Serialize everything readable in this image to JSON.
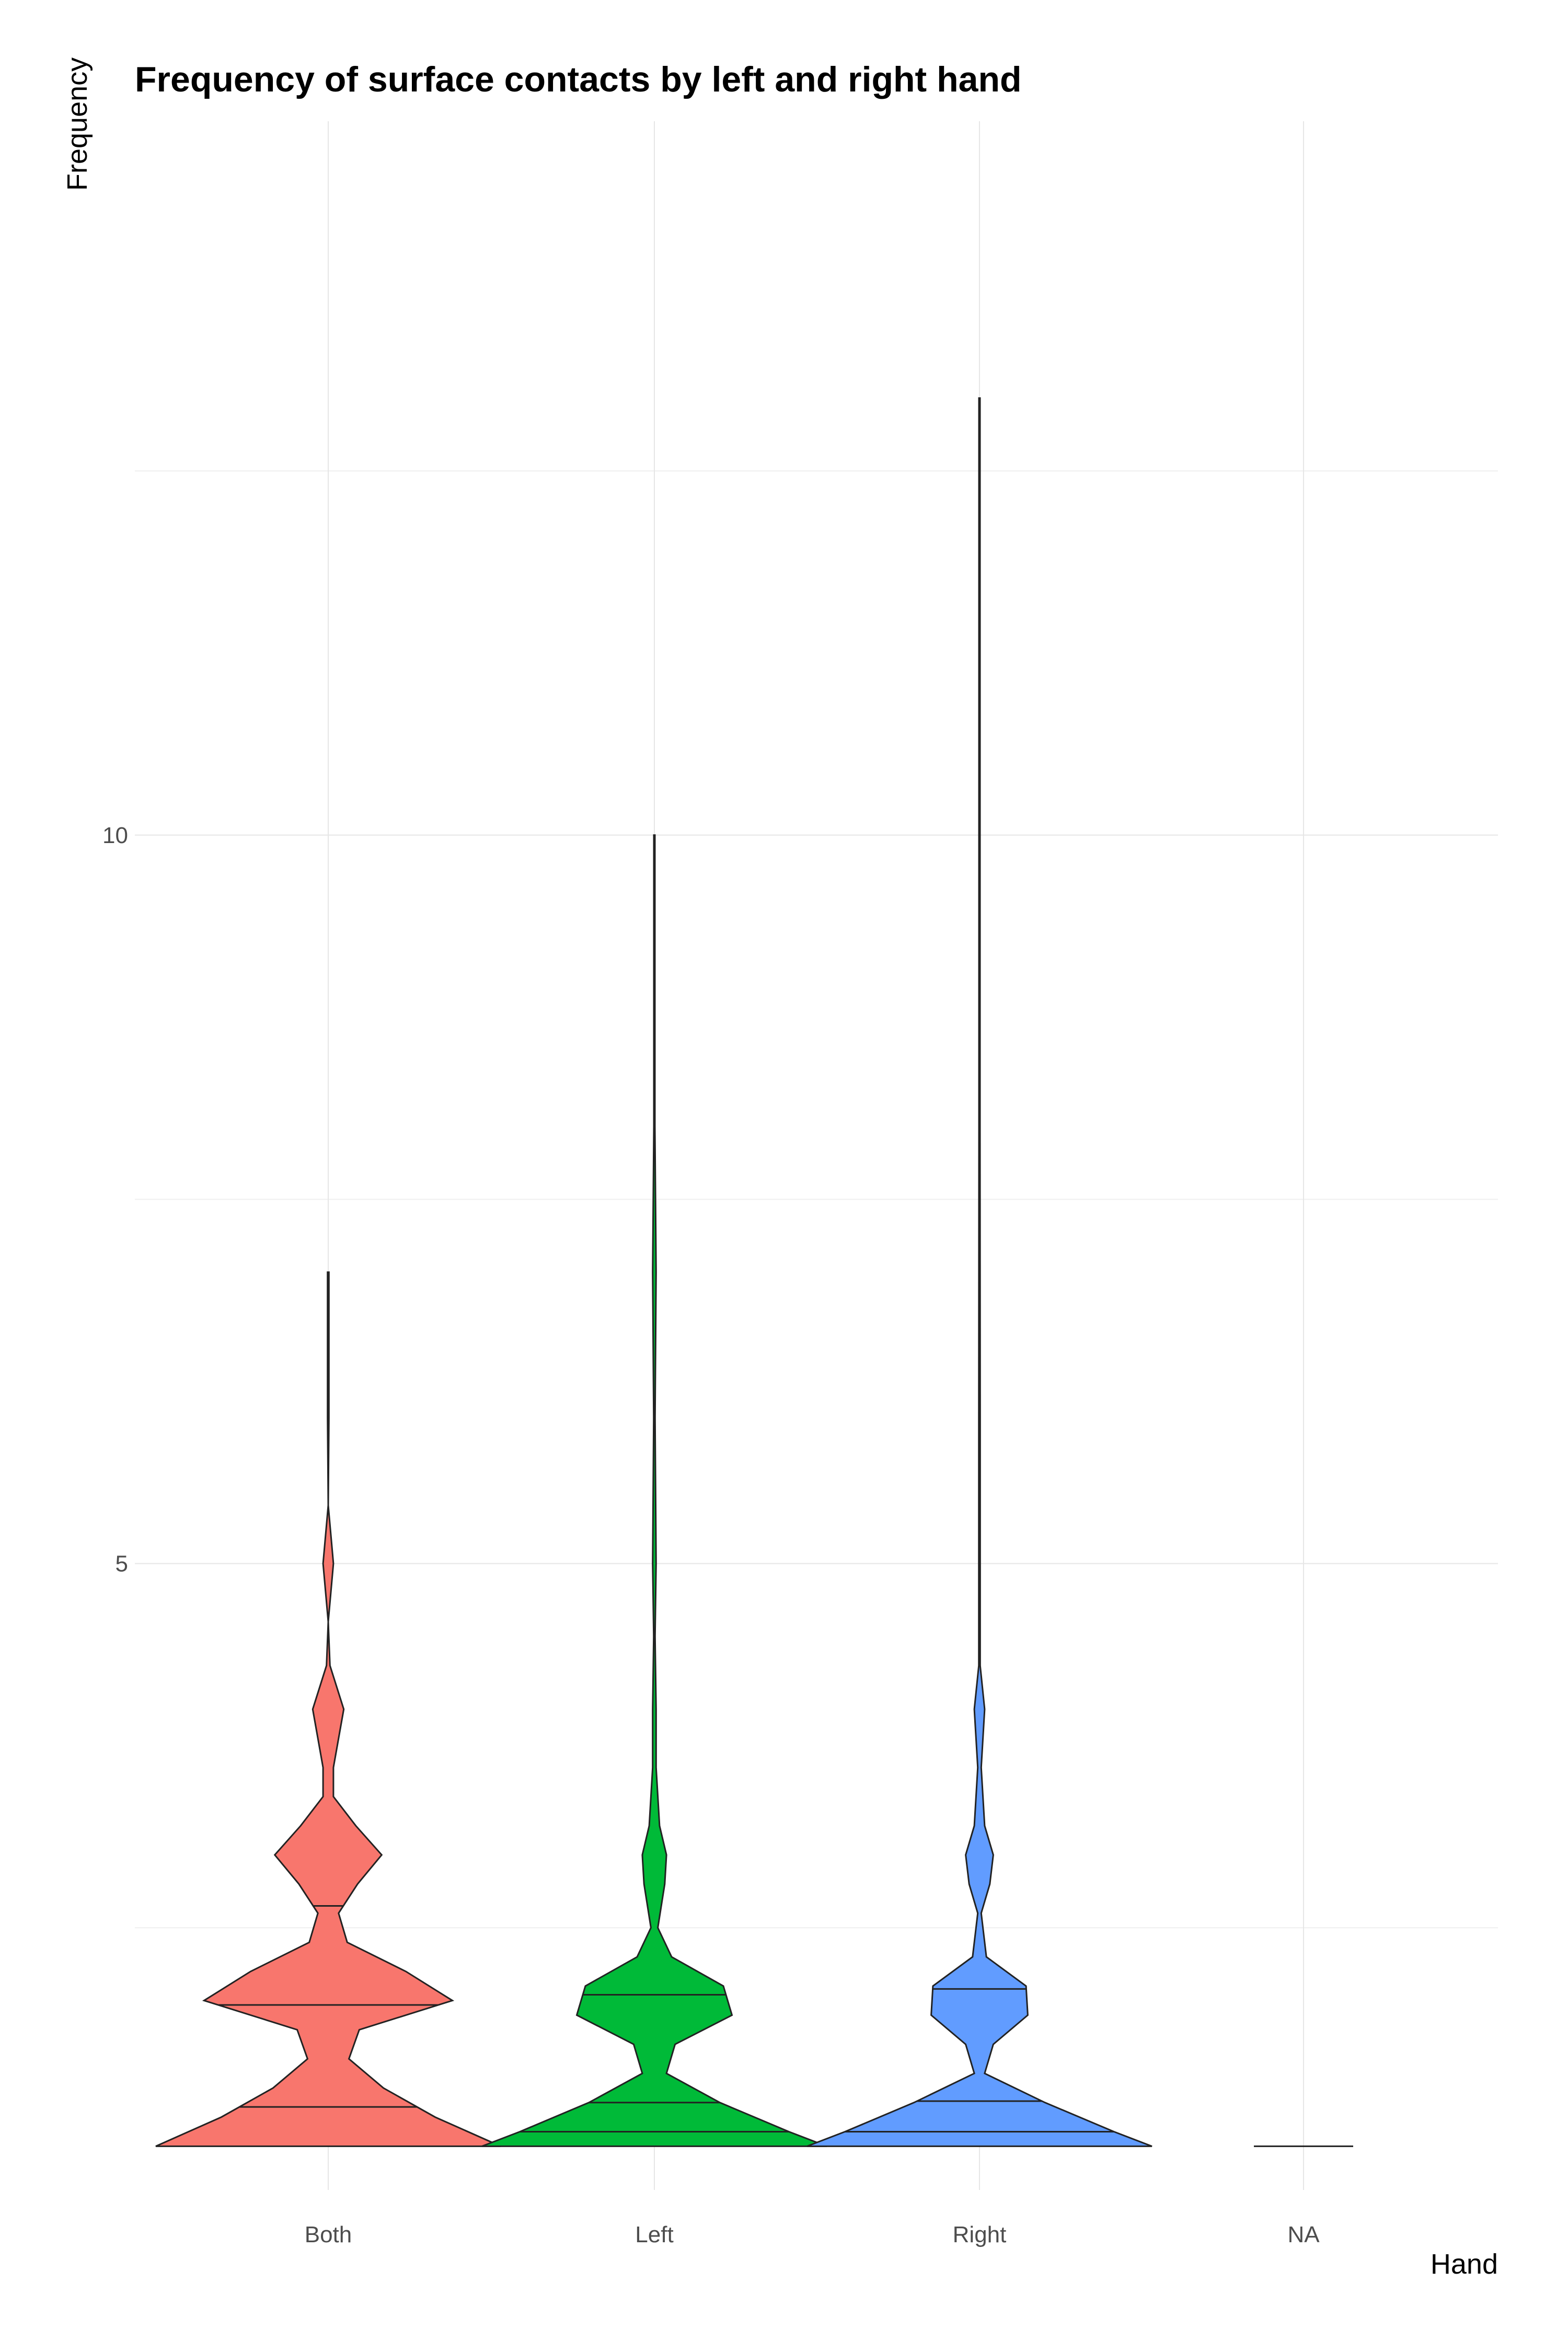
{
  "chart_data": {
    "type": "violin",
    "title": "Frequency of surface contacts by left and right hand",
    "xlabel": "Hand",
    "ylabel": "Frequency",
    "categories": [
      "Both",
      "Left",
      "Right",
      "NA"
    ],
    "yticks": [
      5,
      10
    ],
    "ylim": [
      0.7,
      14.9
    ],
    "grid": true,
    "legend": "none",
    "colors": {
      "Both": "#F8766D",
      "Left": "#00BA38",
      "Right": "#619CFF",
      "NA": "#7F7F7F"
    },
    "series": [
      {
        "name": "Both",
        "color": "#F8766D",
        "max": 7,
        "quantiles": [
          1.27,
          1.97,
          2.65
        ],
        "density": [
          [
            1.0,
            1.0
          ],
          [
            1.2,
            0.62
          ],
          [
            1.4,
            0.32
          ],
          [
            1.6,
            0.12
          ],
          [
            1.8,
            0.18
          ],
          [
            2.0,
            0.72
          ],
          [
            2.2,
            0.45
          ],
          [
            2.4,
            0.11
          ],
          [
            2.6,
            0.06
          ],
          [
            2.8,
            0.17
          ],
          [
            3.0,
            0.31
          ],
          [
            3.2,
            0.16
          ],
          [
            3.4,
            0.03
          ],
          [
            3.6,
            0.03
          ],
          [
            4.0,
            0.09
          ],
          [
            4.3,
            0.01
          ],
          [
            4.6,
            0.0
          ],
          [
            5.0,
            0.03
          ],
          [
            5.4,
            0.0
          ],
          [
            6.0,
            0.004
          ],
          [
            7.0,
            0.004
          ]
        ]
      },
      {
        "name": "Left",
        "color": "#00BA38",
        "max": 10,
        "quantiles": [
          1.1,
          1.3,
          2.04
        ],
        "density": [
          [
            1.0,
            1.0
          ],
          [
            1.1,
            0.78
          ],
          [
            1.3,
            0.38
          ],
          [
            1.5,
            0.07
          ],
          [
            1.7,
            0.12
          ],
          [
            1.9,
            0.45
          ],
          [
            2.1,
            0.4
          ],
          [
            2.3,
            0.1
          ],
          [
            2.5,
            0.02
          ],
          [
            2.8,
            0.06
          ],
          [
            3.0,
            0.07
          ],
          [
            3.2,
            0.03
          ],
          [
            3.6,
            0.01
          ],
          [
            4.0,
            0.01
          ],
          [
            4.5,
            0.004
          ],
          [
            5.0,
            0.01
          ],
          [
            6.0,
            0.004
          ],
          [
            7.0,
            0.01
          ],
          [
            8.0,
            0.003
          ],
          [
            10.0,
            0.003
          ]
        ]
      },
      {
        "name": "Right",
        "color": "#619CFF",
        "max": 13,
        "quantiles": [
          1.1,
          1.31,
          2.08
        ],
        "density": [
          [
            1.0,
            1.0
          ],
          [
            1.1,
            0.78
          ],
          [
            1.3,
            0.38
          ],
          [
            1.5,
            0.03
          ],
          [
            1.7,
            0.08
          ],
          [
            1.9,
            0.28
          ],
          [
            2.1,
            0.27
          ],
          [
            2.3,
            0.04
          ],
          [
            2.6,
            0.01
          ],
          [
            2.8,
            0.06
          ],
          [
            3.0,
            0.08
          ],
          [
            3.2,
            0.03
          ],
          [
            3.6,
            0.01
          ],
          [
            4.0,
            0.03
          ],
          [
            4.3,
            0.004
          ],
          [
            5.0,
            0.004
          ],
          [
            6.0,
            0.004
          ],
          [
            8.0,
            0.003
          ],
          [
            13.0,
            0.003
          ]
        ]
      },
      {
        "name": "NA",
        "color": "#7F7F7F",
        "max": 1,
        "quantiles": [],
        "density": [
          [
            1.0,
            1.0
          ]
        ]
      }
    ]
  }
}
